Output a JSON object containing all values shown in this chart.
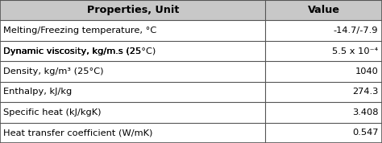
{
  "header": [
    "Properties, Unit",
    "Value"
  ],
  "rows": [
    [
      "Melting/Freezing temperature, °C",
      "-14.7/-7.9"
    ],
    [
      "Dynamic viscosity, kg/m.s (25°C)",
      "5.5 x 10⁻⁴"
    ],
    [
      "Density, kg/m³ (25°C)",
      "1040"
    ],
    [
      "Enthalpy, kJ/kg",
      "274.3"
    ],
    [
      "Specific heat (kJ/kgK)",
      "3.408"
    ],
    [
      "Heat transfer coefficient (W/mK)",
      "0.547"
    ]
  ],
  "col_split": 0.695,
  "header_bg": "#c8c8c8",
  "row_bg": "#ffffff",
  "border_color": "#555555",
  "text_color": "#000000",
  "font_size": 8.2,
  "header_font_size": 9.2
}
